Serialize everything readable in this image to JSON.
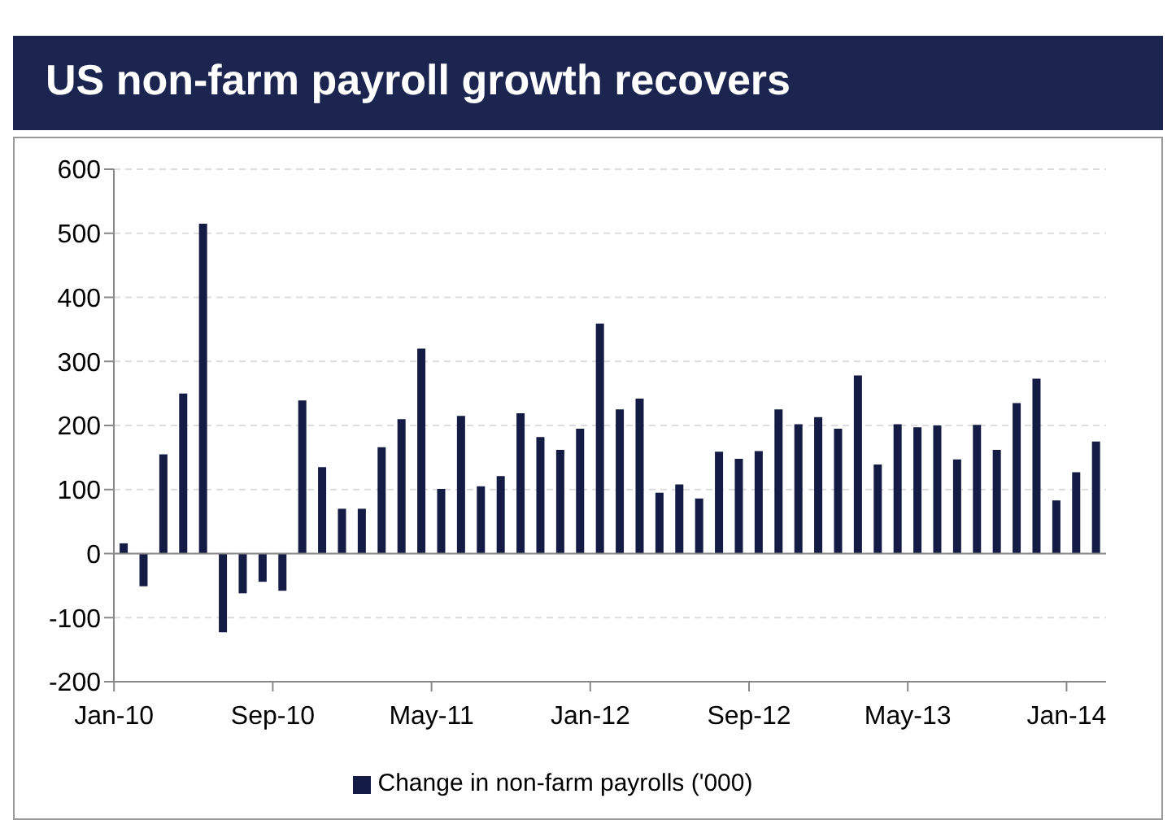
{
  "chart_data": {
    "type": "bar",
    "title": "US non-farm payroll growth recovers",
    "categories": [
      "Jan-10",
      null,
      null,
      null,
      null,
      null,
      null,
      null,
      "Sep-10",
      null,
      null,
      null,
      null,
      null,
      null,
      null,
      "May-11",
      null,
      null,
      null,
      null,
      null,
      null,
      null,
      "Jan-12",
      null,
      null,
      null,
      null,
      null,
      null,
      null,
      "Sep-12",
      null,
      null,
      null,
      null,
      null,
      null,
      null,
      "May-13",
      null,
      null,
      null,
      null,
      null,
      null,
      null,
      "Jan-14",
      null
    ],
    "series": [
      {
        "name": "Change in non-farm payrolls ('000)",
        "color": "#141c45",
        "values": [
          16,
          -51,
          155,
          250,
          515,
          -123,
          -62,
          -44,
          -58,
          239,
          135,
          70,
          70,
          166,
          210,
          320,
          101,
          215,
          105,
          121,
          219,
          182,
          162,
          195,
          359,
          225,
          242,
          95,
          108,
          86,
          159,
          148,
          160,
          225,
          202,
          213,
          195,
          278,
          139,
          202,
          197,
          200,
          147,
          201,
          162,
          235,
          273,
          83,
          127,
          175
        ]
      }
    ],
    "ylim": [
      -200,
      600
    ],
    "yticks": [
      -200,
      -100,
      0,
      100,
      200,
      300,
      400,
      500,
      600
    ],
    "grid": "y",
    "legend": "bottom"
  }
}
